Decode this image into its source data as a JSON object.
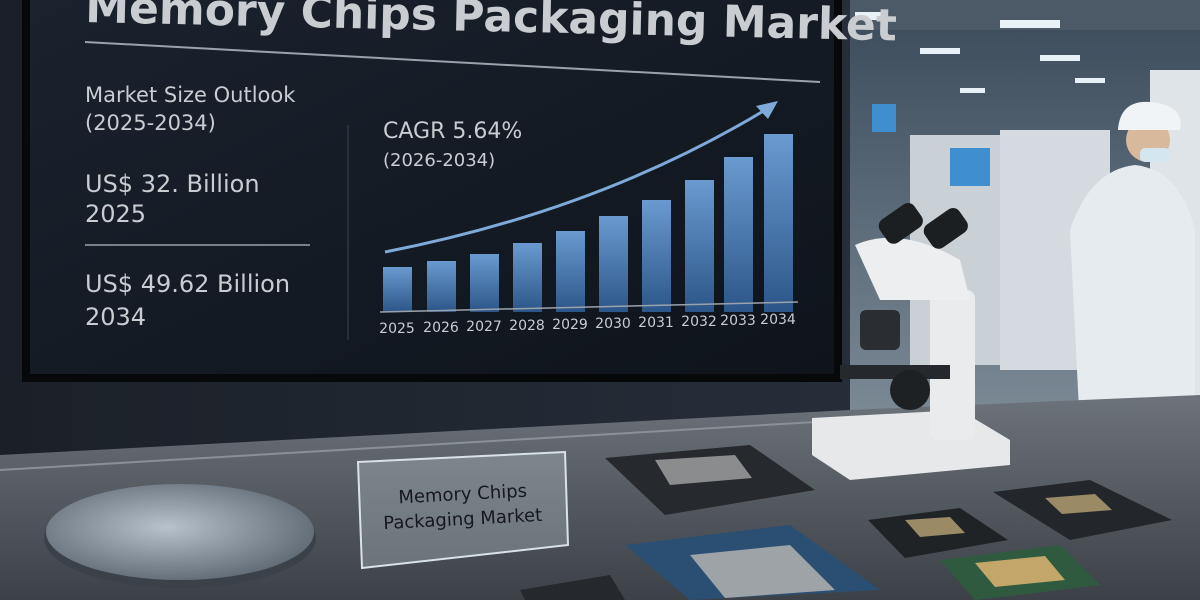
{
  "screen": {
    "title": "Memory Chips Packaging Market",
    "outlook": {
      "heading": "Market Size Outlook",
      "period": "(2025-2034)"
    },
    "start": {
      "amount": "US$ 32. Billion",
      "year": "2025"
    },
    "end": {
      "amount": "US$ 49.62 Billion",
      "year": "2034"
    },
    "cagr": {
      "label": "CAGR 5.64%",
      "period": "(2026-2034)"
    },
    "years": [
      "2025",
      "2026",
      "2027",
      "2028",
      "2029",
      "2030",
      "2031",
      "2032",
      "2033",
      "2034"
    ]
  },
  "sign": {
    "lines": [
      "Memory Chips",
      "Packaging Market"
    ]
  }
}
